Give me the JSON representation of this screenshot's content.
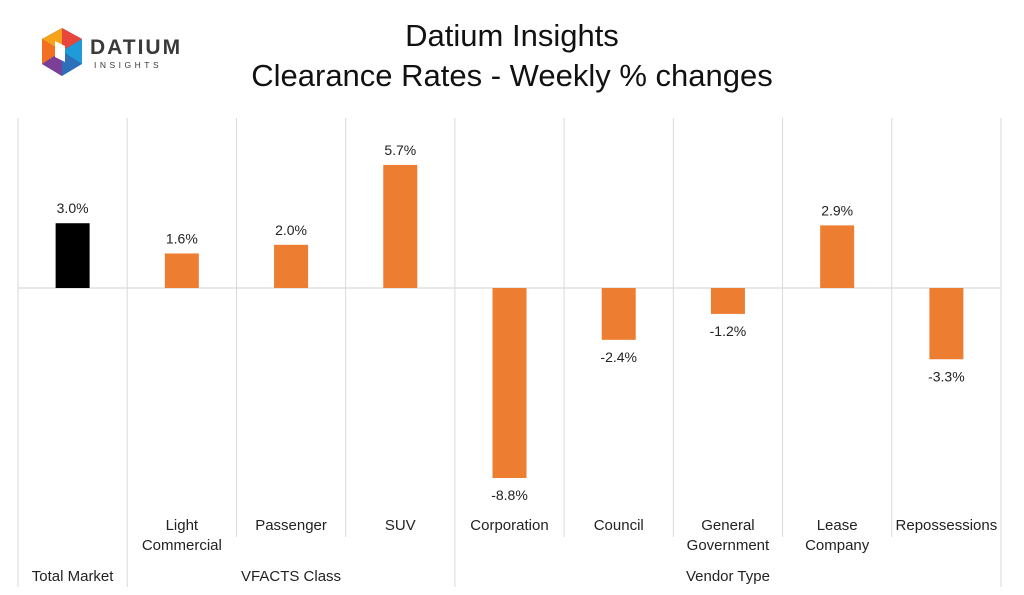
{
  "header": {
    "logo_word": "DATIUM",
    "logo_sub": "INSIGHTS",
    "title": "Datium Insights",
    "subtitle": "Clearance Rates - Weekly % changes"
  },
  "colors": {
    "total": "#000000",
    "bar": "#ED7D31",
    "grid": "#D9D9D9"
  },
  "chart_data": {
    "type": "bar",
    "title": "Clearance Rates - Weekly % changes",
    "unit": "%",
    "ylim": [
      -10,
      7
    ],
    "categories": [
      {
        "label": [
          "Total Market"
        ],
        "value": 3.0,
        "label_text": "3.0%",
        "group": "Total Market"
      },
      {
        "label": [
          "Light",
          "Commercial"
        ],
        "value": 1.6,
        "label_text": "1.6%",
        "group": "VFACTS Class"
      },
      {
        "label": [
          "Passenger"
        ],
        "value": 2.0,
        "label_text": "2.0%",
        "group": "VFACTS Class"
      },
      {
        "label": [
          "SUV"
        ],
        "value": 5.7,
        "label_text": "5.7%",
        "group": "VFACTS Class"
      },
      {
        "label": [
          "Corporation"
        ],
        "value": -8.8,
        "label_text": "-8.8%",
        "group": "Vendor Type"
      },
      {
        "label": [
          "Council"
        ],
        "value": -2.4,
        "label_text": "-2.4%",
        "group": "Vendor Type"
      },
      {
        "label": [
          "General",
          "Government"
        ],
        "value": -1.2,
        "label_text": "-1.2%",
        "group": "Vendor Type"
      },
      {
        "label": [
          "Lease",
          "Company"
        ],
        "value": 2.9,
        "label_text": "2.9%",
        "group": "Vendor Type"
      },
      {
        "label": [
          "Repossessions"
        ],
        "value": -3.3,
        "label_text": "-3.3%",
        "group": "Vendor Type"
      }
    ],
    "groups": [
      "Total Market",
      "VFACTS Class",
      "Vendor Type"
    ]
  }
}
